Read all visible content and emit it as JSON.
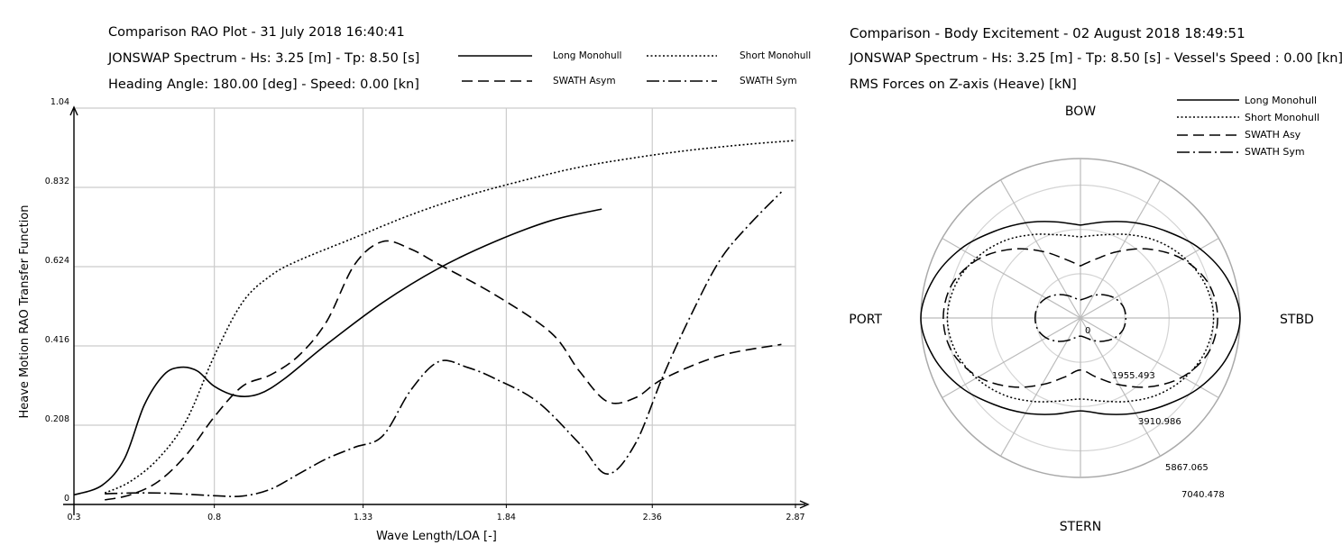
{
  "left_header": {
    "title": "Comparison RAO Plot -  31 July 2018 16:40:41",
    "line2": "JONSWAP Spectrum - Hs: 3.25 [m] - Tp: 8.50 [s]",
    "line3": "Heading Angle: 180.00 [deg] - Speed: 0.00 [kn]"
  },
  "right_header": {
    "title": "Comparison  - Body Excitement -  02 August 2018 18:49:51",
    "line2": "JONSWAP Spectrum - Hs: 3.25 [m] - Tp: 8.50 [s] - Vessel's Speed : 0.00 [kn]",
    "line3": "RMS Forces on Z-axis (Heave) [kN]"
  },
  "colors": {
    "line": "#000000",
    "grid": "#cccccc",
    "polar_grid": "#bbbbbb",
    "background": "#ffffff"
  },
  "chart_data": [
    {
      "type": "line",
      "xlabel": "Wave Length/LOA [-]",
      "ylabel": "Heave Motion RAO Transfer Function",
      "xlim": [
        0.3,
        2.87
      ],
      "ylim": [
        0,
        1.04
      ],
      "xticks": [
        "0.3",
        "0.8",
        "1.33",
        "1.84",
        "2.36",
        "2.87"
      ],
      "xtick_values": [
        0.3,
        0.8,
        1.33,
        1.84,
        2.36,
        2.87
      ],
      "yticks": [
        "0",
        "0.208",
        "0.416",
        "0.624",
        "0.832",
        "1.04"
      ],
      "ytick_values": [
        0,
        0.208,
        0.416,
        0.624,
        0.832,
        1.04
      ],
      "grid": true,
      "legend_position": "top",
      "series": [
        {
          "name": "Long Monohull",
          "style": "solid",
          "x": [
            0.3,
            0.4,
            0.48,
            0.55,
            0.62,
            0.68,
            0.74,
            0.8,
            0.88,
            0.96,
            1.05,
            1.2,
            1.4,
            1.6,
            1.8,
            2.0,
            2.18
          ],
          "y": [
            0.025,
            0.05,
            0.12,
            0.26,
            0.34,
            0.36,
            0.35,
            0.31,
            0.285,
            0.29,
            0.33,
            0.42,
            0.53,
            0.62,
            0.69,
            0.745,
            0.775
          ]
        },
        {
          "name": "Short Monohull",
          "style": "dotted",
          "x": [
            0.41,
            0.5,
            0.6,
            0.7,
            0.8,
            0.9,
            1.0,
            1.1,
            1.3,
            1.5,
            1.7,
            1.9,
            2.1,
            2.3,
            2.5,
            2.7,
            2.87
          ],
          "y": [
            0.03,
            0.06,
            0.12,
            0.22,
            0.39,
            0.53,
            0.6,
            0.64,
            0.7,
            0.76,
            0.81,
            0.85,
            0.885,
            0.91,
            0.93,
            0.945,
            0.955
          ]
        },
        {
          "name": "SWATH Asym",
          "style": "dashed",
          "x": [
            0.41,
            0.5,
            0.6,
            0.7,
            0.8,
            0.9,
            1.0,
            1.1,
            1.2,
            1.3,
            1.4,
            1.5,
            1.6,
            1.8,
            2.0,
            2.1,
            2.2,
            2.3,
            2.4,
            2.6,
            2.82
          ],
          "y": [
            0.012,
            0.025,
            0.06,
            0.13,
            0.23,
            0.31,
            0.34,
            0.39,
            0.48,
            0.63,
            0.69,
            0.67,
            0.63,
            0.55,
            0.45,
            0.35,
            0.27,
            0.28,
            0.33,
            0.39,
            0.42
          ]
        },
        {
          "name": "SWATH Sym",
          "style": "dashdot",
          "x": [
            0.41,
            0.5,
            0.6,
            0.7,
            0.8,
            0.9,
            1.0,
            1.1,
            1.2,
            1.3,
            1.4,
            1.5,
            1.6,
            1.7,
            1.8,
            1.95,
            2.1,
            2.2,
            2.3,
            2.4,
            2.5,
            2.6,
            2.7,
            2.82
          ],
          "y": [
            0.028,
            0.03,
            0.03,
            0.027,
            0.023,
            0.022,
            0.04,
            0.08,
            0.12,
            0.15,
            0.18,
            0.3,
            0.375,
            0.36,
            0.33,
            0.27,
            0.16,
            0.08,
            0.16,
            0.34,
            0.5,
            0.64,
            0.73,
            0.82
          ]
        }
      ]
    },
    {
      "type": "polar",
      "directions": {
        "top": "BOW",
        "bottom": "STERN",
        "left": "PORT",
        "right": "STBD"
      },
      "ring_labels": [
        "0",
        "1955.493",
        "3910.986",
        "5867.065",
        "7040.478"
      ],
      "ring_values": [
        0,
        1955.493,
        3910.986,
        5867.065,
        7040.478
      ],
      "r_max": 7040.478,
      "spokes_deg": 30,
      "grid": true,
      "legend_position": "top-right",
      "theta_unit": "deg, 0 = BOW, clockwise toward STBD",
      "series": [
        {
          "name": "Long Monohull",
          "style": "solid",
          "theta": [
            0,
            15,
            30,
            45,
            60,
            75,
            90
          ],
          "r": [
            4100,
            4400,
            4850,
            5400,
            6100,
            6700,
            7040
          ]
        },
        {
          "name": "Short Monohull",
          "style": "dotted",
          "theta": [
            0,
            15,
            30,
            45,
            60,
            75,
            90
          ],
          "r": [
            3580,
            3800,
            4250,
            4800,
            5300,
            5700,
            5870
          ]
        },
        {
          "name": "SWATH Asy",
          "style": "dashed",
          "theta": [
            0,
            15,
            30,
            45,
            60,
            75,
            90
          ],
          "r": [
            2300,
            2700,
            3400,
            4300,
            5200,
            5850,
            6050
          ]
        },
        {
          "name": "SWATH Sym",
          "style": "dashdot",
          "theta": [
            0,
            15,
            30,
            45,
            60,
            75,
            90
          ],
          "r": [
            800,
            900,
            1150,
            1450,
            1750,
            1950,
            2000
          ]
        }
      ]
    }
  ]
}
